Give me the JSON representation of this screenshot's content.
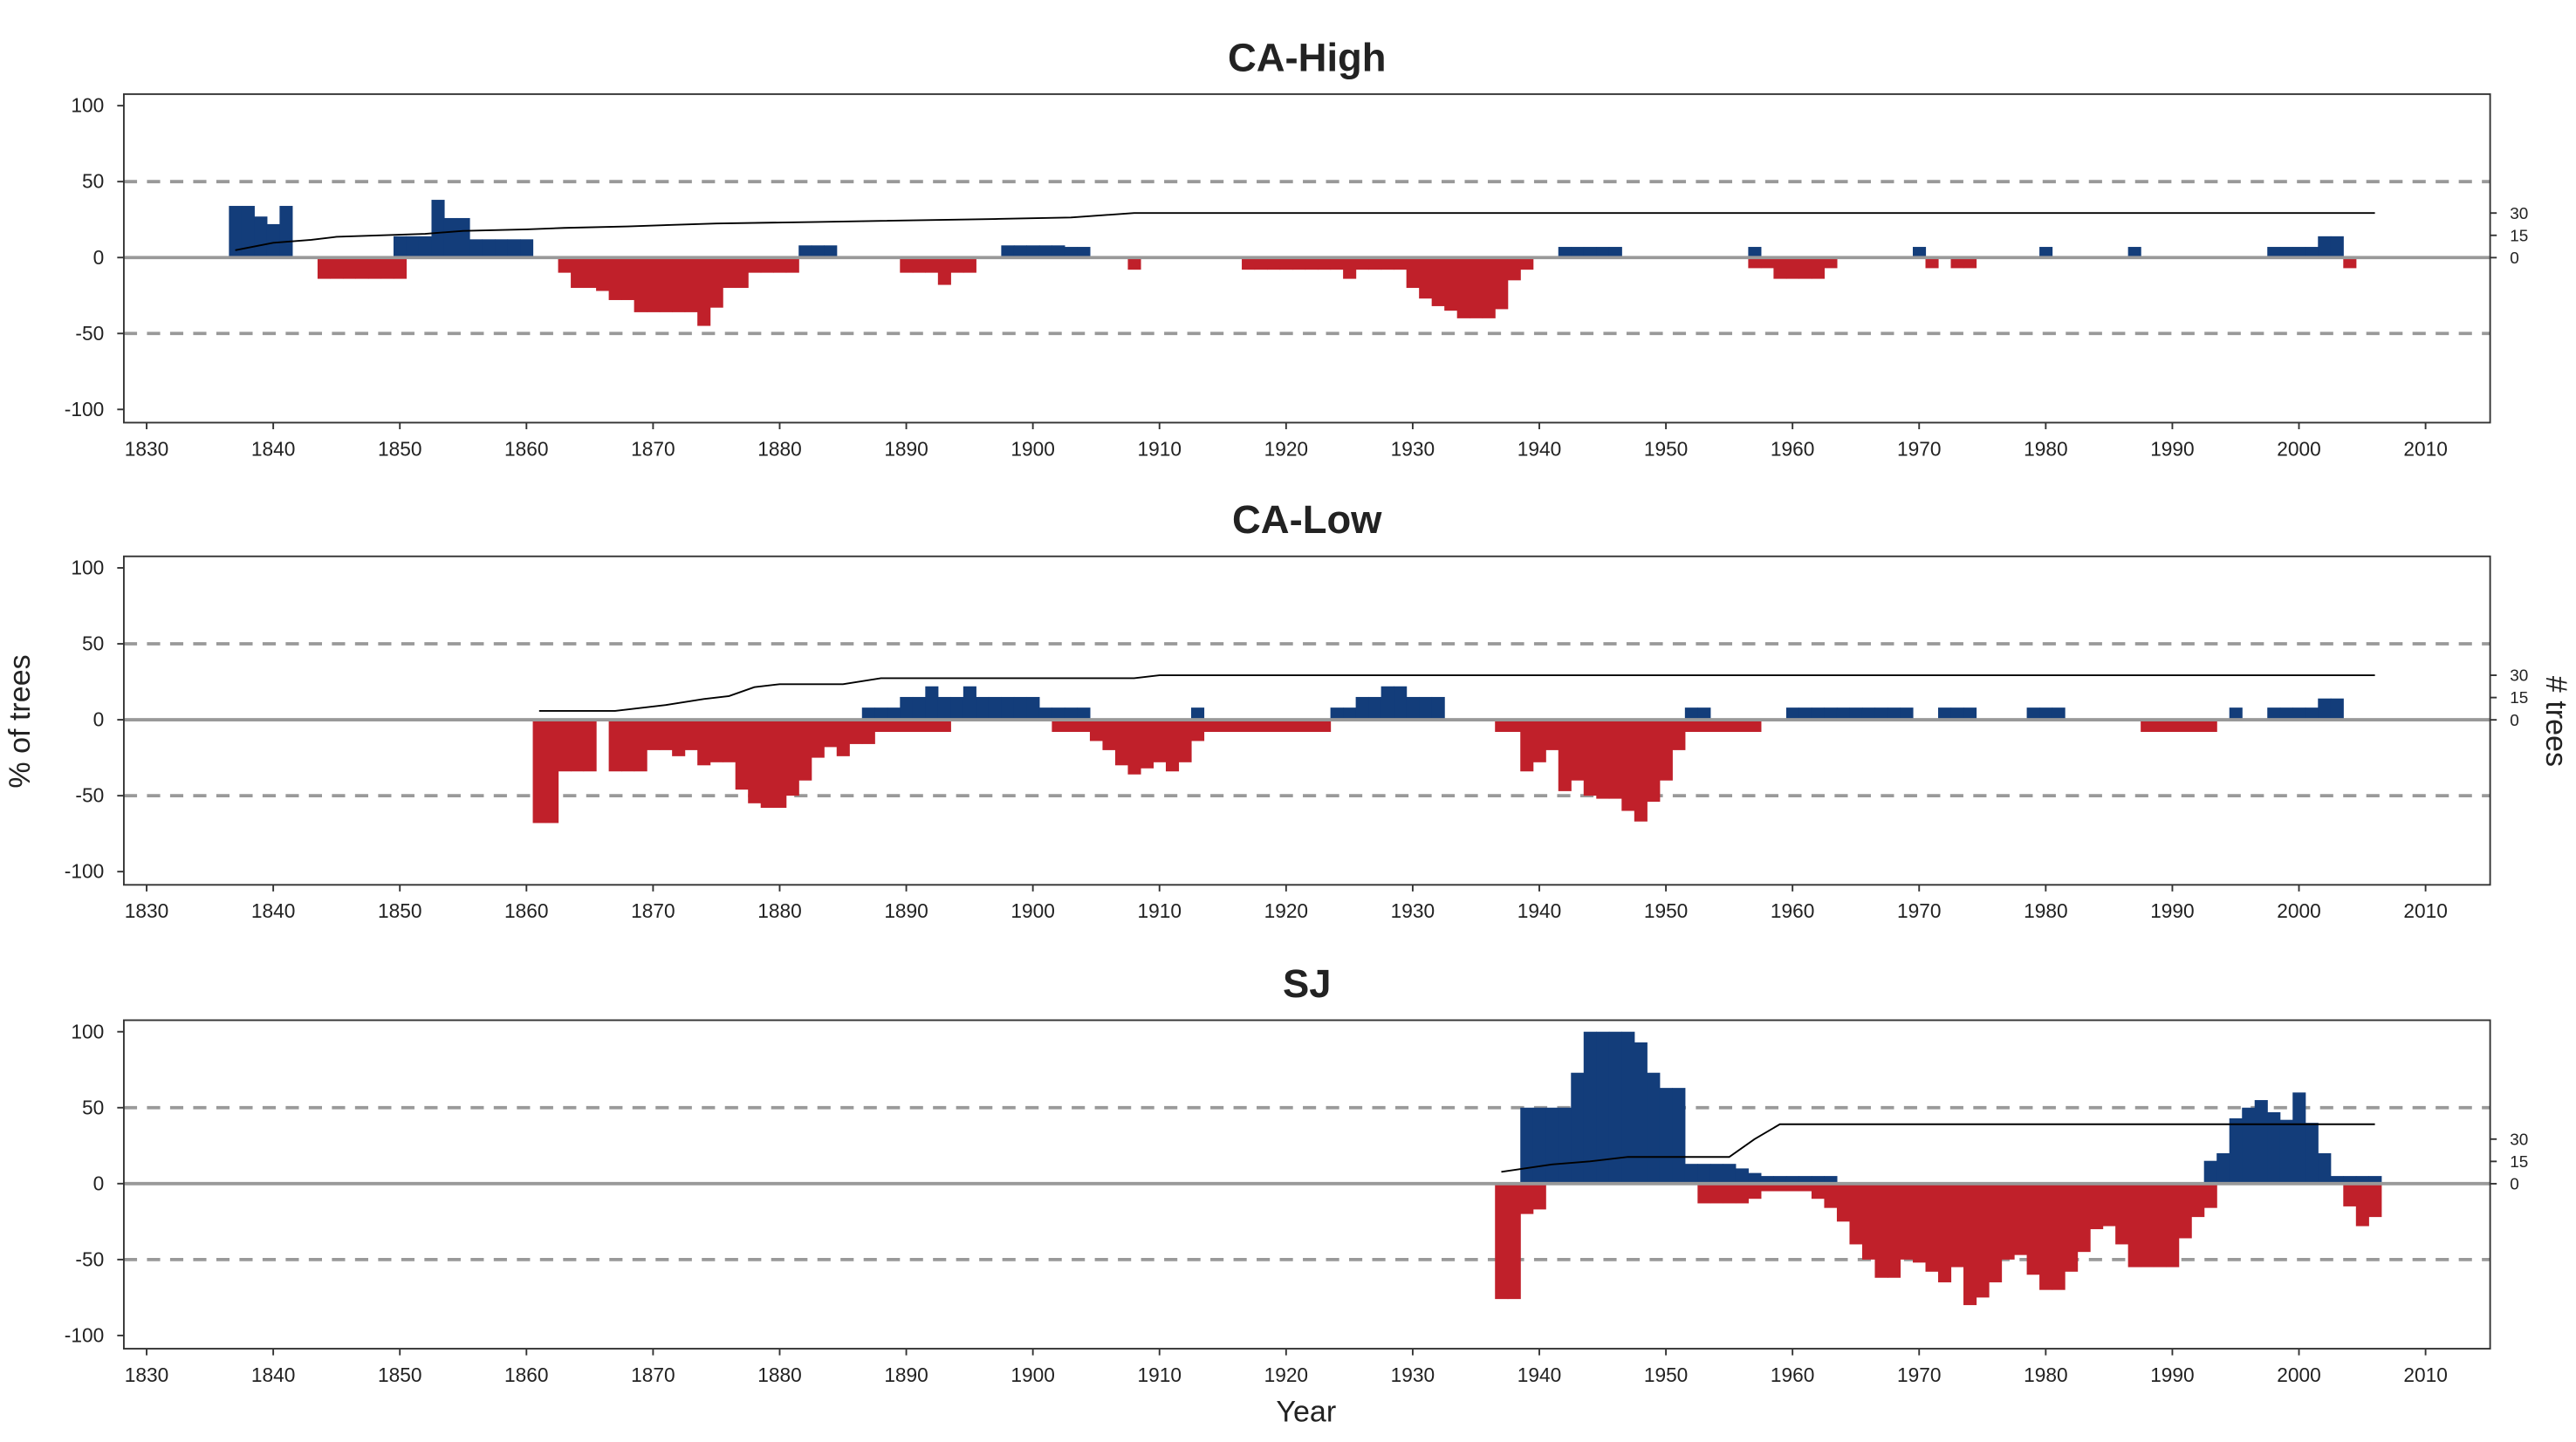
{
  "xlabel": "Year",
  "ylabel": "% of trees",
  "y2label": "# trees",
  "chart_data": [
    {
      "type": "bar",
      "title": "CA-High",
      "xlim": [
        1828.2,
        2015.1
      ],
      "xticks": [
        1830,
        1840,
        1850,
        1860,
        1870,
        1880,
        1890,
        1900,
        1910,
        1920,
        1930,
        1940,
        1950,
        1960,
        1970,
        1980,
        1990,
        2000,
        2010
      ],
      "ylim": [
        -108.7,
        107.6
      ],
      "yticks": [
        -100,
        -50,
        0,
        50,
        100
      ],
      "y2lim": [
        -111,
        110
      ],
      "y2ticks": [
        0,
        15,
        30
      ],
      "ref_lines": [
        50,
        -50
      ],
      "series": [
        {
          "color": "#133d7a",
          "x": [
            1837,
            1838,
            1839,
            1840,
            1841,
            1850,
            1851,
            1852,
            1853,
            1854,
            1855,
            1856,
            1857,
            1858,
            1859,
            1860,
            1882,
            1883,
            1884,
            1898,
            1899,
            1900,
            1901,
            1902,
            1903,
            1904,
            1942,
            1943,
            1944,
            1945,
            1946,
            1957,
            1970,
            1980,
            1987,
            1998,
            1999,
            2000,
            2001,
            2002,
            2003
          ],
          "values": [
            34,
            34,
            27,
            22,
            34,
            14,
            14,
            14,
            38,
            26,
            26,
            12,
            12,
            12,
            12,
            12,
            8,
            8,
            8,
            8,
            8,
            8,
            8,
            8,
            7,
            7,
            7,
            7,
            7,
            7,
            7,
            7,
            7,
            7,
            7,
            7,
            7,
            7,
            7,
            14,
            14
          ]
        },
        {
          "color": "#c0202a",
          "x": [
            1844,
            1845,
            1846,
            1847,
            1848,
            1849,
            1850,
            1863,
            1864,
            1865,
            1866,
            1867,
            1868,
            1869,
            1870,
            1871,
            1872,
            1873,
            1874,
            1875,
            1876,
            1877,
            1878,
            1879,
            1880,
            1881,
            1890,
            1891,
            1892,
            1893,
            1894,
            1895,
            1908,
            1917,
            1918,
            1919,
            1920,
            1921,
            1922,
            1923,
            1924,
            1925,
            1926,
            1927,
            1928,
            1929,
            1930,
            1931,
            1932,
            1933,
            1934,
            1935,
            1936,
            1937,
            1938,
            1939,
            1957,
            1958,
            1959,
            1960,
            1961,
            1962,
            1963,
            1971,
            1973,
            1974,
            2004
          ],
          "values": [
            -14,
            -14,
            -14,
            -14,
            -14,
            -14,
            -14,
            -10,
            -20,
            -20,
            -22,
            -28,
            -28,
            -36,
            -36,
            -36,
            -36,
            -36,
            -45,
            -33,
            -20,
            -20,
            -10,
            -10,
            -10,
            -10,
            -10,
            -10,
            -10,
            -18,
            -10,
            -10,
            -8,
            -8,
            -8,
            -8,
            -8,
            -8,
            -8,
            -8,
            -8,
            -14,
            -8,
            -8,
            -8,
            -8,
            -20,
            -27,
            -32,
            -35,
            -40,
            -40,
            -40,
            -34,
            -15,
            -8,
            -7,
            -7,
            -14,
            -14,
            -14,
            -14,
            -7,
            -7,
            -7,
            -7,
            -7
          ]
        },
        {
          "type": "line",
          "axis": "y2",
          "color": "#000000",
          "x": [
            1837,
            1840,
            1843,
            1845,
            1852,
            1855,
            1860,
            1863,
            1868,
            1875,
            1883,
            1897,
            1903,
            1908,
            2006
          ],
          "values": [
            5,
            10,
            12,
            14,
            16,
            18,
            19,
            20,
            21,
            23,
            24,
            26,
            27,
            30,
            30
          ]
        }
      ]
    },
    {
      "type": "bar",
      "title": "CA-Low",
      "xlim": [
        1828.2,
        2015.1
      ],
      "xticks": [
        1830,
        1840,
        1850,
        1860,
        1870,
        1880,
        1890,
        1900,
        1910,
        1920,
        1930,
        1940,
        1950,
        1960,
        1970,
        1980,
        1990,
        2000,
        2010
      ],
      "ylim": [
        -108.7,
        107.6
      ],
      "yticks": [
        -100,
        -50,
        0,
        50,
        100
      ],
      "y2lim": [
        -111,
        110
      ],
      "y2ticks": [
        0,
        15,
        30
      ],
      "ref_lines": [
        50,
        -50
      ],
      "series": [
        {
          "color": "#133d7a",
          "x": [
            1887,
            1888,
            1889,
            1890,
            1891,
            1892,
            1893,
            1894,
            1895,
            1896,
            1897,
            1898,
            1899,
            1900,
            1901,
            1902,
            1903,
            1904,
            1913,
            1924,
            1925,
            1926,
            1927,
            1928,
            1929,
            1930,
            1931,
            1932,
            1952,
            1953,
            1960,
            1961,
            1962,
            1963,
            1964,
            1965,
            1966,
            1967,
            1968,
            1969,
            1972,
            1973,
            1974,
            1979,
            1980,
            1981,
            1995,
            1998,
            1999,
            2000,
            2001,
            2002,
            2003
          ],
          "values": [
            8,
            8,
            8,
            15,
            15,
            22,
            15,
            15,
            22,
            15,
            15,
            15,
            15,
            15,
            8,
            8,
            8,
            8,
            8,
            8,
            8,
            15,
            15,
            22,
            22,
            15,
            15,
            15,
            8,
            8,
            8,
            8,
            8,
            8,
            8,
            8,
            8,
            8,
            8,
            8,
            8,
            8,
            8,
            8,
            8,
            8,
            8,
            8,
            8,
            8,
            8,
            14,
            14
          ]
        },
        {
          "color": "#c0202a",
          "x": [
            1861,
            1862,
            1863,
            1864,
            1865,
            1867,
            1868,
            1869,
            1870,
            1871,
            1872,
            1873,
            1874,
            1875,
            1876,
            1877,
            1878,
            1879,
            1880,
            1881,
            1882,
            1883,
            1884,
            1885,
            1886,
            1887,
            1888,
            1889,
            1890,
            1891,
            1892,
            1893,
            1902,
            1903,
            1904,
            1905,
            1906,
            1907,
            1908,
            1909,
            1910,
            1911,
            1912,
            1913,
            1914,
            1915,
            1916,
            1917,
            1918,
            1919,
            1920,
            1921,
            1922,
            1923,
            1937,
            1938,
            1939,
            1940,
            1941,
            1942,
            1943,
            1944,
            1945,
            1946,
            1947,
            1948,
            1949,
            1950,
            1951,
            1952,
            1953,
            1954,
            1955,
            1956,
            1957,
            1988,
            1989,
            1990,
            1991,
            1992,
            1993
          ],
          "values": [
            -68,
            -68,
            -34,
            -34,
            -34,
            -34,
            -34,
            -34,
            -20,
            -20,
            -24,
            -20,
            -30,
            -28,
            -28,
            -46,
            -55,
            -58,
            -58,
            -50,
            -40,
            -25,
            -18,
            -24,
            -16,
            -16,
            -8,
            -8,
            -8,
            -8,
            -8,
            -8,
            -8,
            -8,
            -8,
            -14,
            -20,
            -30,
            -36,
            -32,
            -28,
            -34,
            -28,
            -14,
            -8,
            -8,
            -8,
            -8,
            -8,
            -8,
            -8,
            -8,
            -8,
            -8,
            -8,
            -8,
            -34,
            -28,
            -20,
            -47,
            -40,
            -50,
            -52,
            -52,
            -60,
            -67,
            -54,
            -40,
            -20,
            -8,
            -8,
            -8,
            -8,
            -8,
            -8,
            -8,
            -8,
            -8,
            -8,
            -8,
            -8
          ]
        },
        {
          "type": "line",
          "axis": "y2",
          "color": "#000000",
          "x": [
            1861,
            1867,
            1869,
            1871,
            1874,
            1876,
            1878,
            1880,
            1885,
            1888,
            1908,
            1910,
            2006
          ],
          "values": [
            6,
            6,
            8,
            10,
            14,
            16,
            22,
            24,
            24,
            28,
            28,
            30,
            30
          ]
        }
      ]
    },
    {
      "type": "bar",
      "title": "SJ",
      "xlim": [
        1828.2,
        2015.1
      ],
      "xticks": [
        1830,
        1840,
        1850,
        1860,
        1870,
        1880,
        1890,
        1900,
        1910,
        1920,
        1930,
        1940,
        1950,
        1960,
        1970,
        1980,
        1990,
        2000,
        2010
      ],
      "ylim": [
        -108.7,
        107.6
      ],
      "yticks": [
        -100,
        -50,
        0,
        50,
        100
      ],
      "y2lim": [
        -111,
        110
      ],
      "y2ticks": [
        0,
        15,
        30
      ],
      "ref_lines": [
        50,
        -50
      ],
      "series": [
        {
          "color": "#133d7a",
          "x": [
            1939,
            1940,
            1941,
            1942,
            1943,
            1944,
            1945,
            1946,
            1947,
            1948,
            1949,
            1950,
            1951,
            1952,
            1953,
            1954,
            1955,
            1956,
            1957,
            1958,
            1959,
            1960,
            1961,
            1962,
            1963,
            1993,
            1994,
            1995,
            1996,
            1997,
            1998,
            1999,
            2000,
            2001,
            2002,
            2003,
            2004,
            2005,
            2006
          ],
          "values": [
            50,
            50,
            50,
            50,
            73,
            100,
            100,
            100,
            100,
            93,
            73,
            63,
            63,
            13,
            13,
            13,
            13,
            10,
            7,
            5,
            5,
            5,
            5,
            5,
            5,
            15,
            20,
            43,
            50,
            55,
            47,
            42,
            60,
            40,
            20,
            5,
            5,
            5,
            5
          ]
        },
        {
          "color": "#c0202a",
          "x": [
            1937,
            1938,
            1939,
            1940,
            1953,
            1954,
            1955,
            1956,
            1957,
            1958,
            1959,
            1960,
            1961,
            1962,
            1963,
            1964,
            1965,
            1966,
            1967,
            1968,
            1969,
            1970,
            1971,
            1972,
            1973,
            1974,
            1975,
            1976,
            1977,
            1978,
            1979,
            1980,
            1981,
            1982,
            1983,
            1984,
            1985,
            1986,
            1987,
            1988,
            1989,
            1990,
            1991,
            1992,
            1993,
            2004,
            2005,
            2006
          ],
          "values": [
            -76,
            -76,
            -20,
            -17,
            -13,
            -13,
            -13,
            -13,
            -10,
            -5,
            -5,
            -5,
            -5,
            -10,
            -16,
            -25,
            -40,
            -50,
            -62,
            -62,
            -50,
            -52,
            -58,
            -65,
            -55,
            -80,
            -75,
            -65,
            -50,
            -47,
            -60,
            -70,
            -70,
            -58,
            -45,
            -30,
            -28,
            -40,
            -55,
            -55,
            -55,
            -55,
            -36,
            -22,
            -16,
            -15,
            -28,
            -22
          ]
        },
        {
          "type": "line",
          "axis": "y2",
          "color": "#000000",
          "x": [
            1937,
            1941,
            1944,
            1947,
            1955,
            1957,
            1959,
            2006
          ],
          "values": [
            8,
            13,
            15,
            18,
            18,
            30,
            40,
            40
          ]
        }
      ]
    }
  ]
}
